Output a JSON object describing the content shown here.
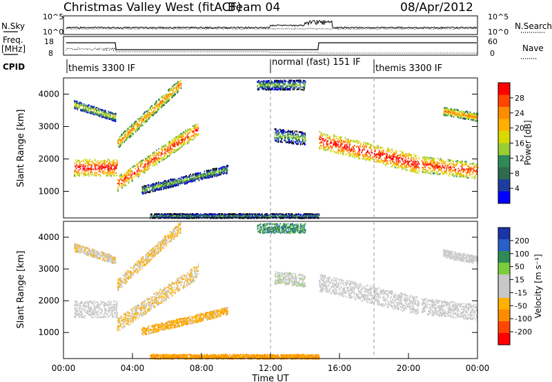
{
  "header": {
    "title": "Christmas Valley West (fitACF)",
    "beam": "Beam 04",
    "date": "08/Apr/2012"
  },
  "panels": {
    "nsky_label": "N.Sky",
    "nsearch_label": "N.Search",
    "freq_label_line1": "Freq.",
    "freq_label_line2": "[MHz]",
    "nave_label": "Nave",
    "cpid_label": "CPID",
    "nsky_ticks": [
      "10^5",
      "10^0"
    ],
    "nsearch_ticks": [
      "10^5",
      "10^0"
    ],
    "freq_ticks": [
      "18",
      "8"
    ],
    "nave_ticks": [
      "60",
      "0"
    ],
    "cpid_segments": [
      {
        "label": "themis 3300 IF",
        "start_h": 0.0
      },
      {
        "label": "normal (fast) 151 IF",
        "start_h": 12.0
      },
      {
        "label": "themis 3300 IF",
        "start_h": 18.0
      }
    ]
  },
  "power_colorbar": {
    "title": "Power [dB]",
    "ticks": [
      "28",
      "24",
      "20",
      "16",
      "12",
      "8",
      "4"
    ],
    "colors": [
      "#ff0000",
      "#ff4500",
      "#ff8c00",
      "#ffb000",
      "#d9d900",
      "#9acd32",
      "#2e8b57",
      "#2e6b4f",
      "#1e3c9e",
      "#0000ff"
    ]
  },
  "velocity_colorbar": {
    "title": "Velocity [m s⁻¹]",
    "ticks": [
      "200",
      "100",
      "50",
      "15",
      "-15",
      "-50",
      "-100",
      "-200"
    ],
    "colors": [
      "#1c34a8",
      "#2a5ec8",
      "#2e8b57",
      "#7ccd3c",
      "#c8c8c8",
      "#c8c8c8",
      "#ffb000",
      "#ff8c00",
      "#ff4500",
      "#ff0000"
    ]
  },
  "axes": {
    "ylabel": "Slant Range [km]",
    "xlabel": "Time UT",
    "yticks": [
      "4000",
      "3000",
      "2000",
      "1000"
    ],
    "xticks": [
      "00:00",
      "04:00",
      "08:00",
      "12:00",
      "16:00",
      "20:00",
      "00:00"
    ]
  },
  "chart_data": {
    "type": "heatmap",
    "title": "Christmas Valley West (fitACF)",
    "subtitle": "Beam 04",
    "date": "08/Apr/2012",
    "xlabel": "Time UT",
    "ylabel": "Slant Range [km]",
    "xlim_hours": [
      0,
      24
    ],
    "ylim_km": [
      180,
      4500
    ],
    "xticks": [
      "00:00",
      "04:00",
      "08:00",
      "12:00",
      "16:00",
      "20:00",
      "00:00"
    ],
    "yticks_km": [
      1000,
      2000,
      3000,
      4000
    ],
    "cpid_change_hours": [
      12.0,
      18.0
    ],
    "data_gap_hours": [
      20.6,
      20.75
    ],
    "power_scale_db": [
      0,
      30
    ],
    "velocity_scale_ms": [
      -200,
      200
    ],
    "scatter_bands": [
      {
        "t0": 0.6,
        "t1": 3.1,
        "r0": 1750,
        "r1": 1750,
        "width": 520,
        "power": 24,
        "velocity": 0
      },
      {
        "t0": 3.1,
        "t1": 7.8,
        "r0": 1250,
        "r1": 2950,
        "width": 450,
        "power": 22,
        "velocity": -40
      },
      {
        "t0": 3.1,
        "t1": 6.8,
        "r0": 2500,
        "r1": 4350,
        "width": 350,
        "power": 18,
        "velocity": -40
      },
      {
        "t0": 0.6,
        "t1": 3.0,
        "r0": 3700,
        "r1": 3300,
        "width": 250,
        "power": 12,
        "velocity": -30
      },
      {
        "t0": 4.5,
        "t1": 9.5,
        "r0": 1050,
        "r1": 1700,
        "width": 250,
        "power": 8,
        "velocity": -60
      },
      {
        "t0": 12.2,
        "t1": 14.0,
        "r0": 2750,
        "r1": 2650,
        "width": 400,
        "power": 8,
        "velocity": 20
      },
      {
        "t0": 14.8,
        "t1": 20.6,
        "r0": 2600,
        "r1": 1850,
        "width": 550,
        "power": 24,
        "velocity": 0
      },
      {
        "t0": 20.75,
        "t1": 24.0,
        "r0": 1850,
        "r1": 1650,
        "width": 500,
        "power": 22,
        "velocity": 0
      },
      {
        "t0": 22.0,
        "t1": 24.0,
        "r0": 3500,
        "r1": 3300,
        "width": 250,
        "power": 18,
        "velocity": 0
      },
      {
        "t0": 5.0,
        "t1": 14.8,
        "r0": 260,
        "r1": 260,
        "width": 140,
        "power": 6,
        "velocity": -80
      },
      {
        "t0": 11.2,
        "t1": 14.0,
        "r0": 4300,
        "r1": 4300,
        "width": 300,
        "power": 8,
        "velocity": 100
      }
    ]
  }
}
